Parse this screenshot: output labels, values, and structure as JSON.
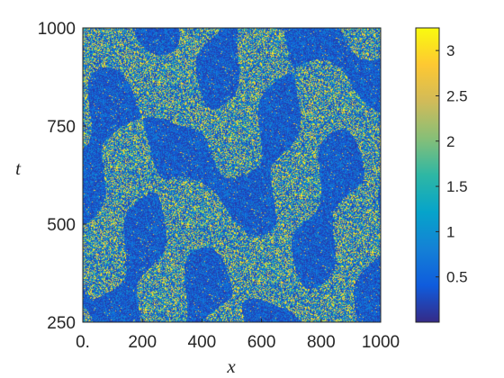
{
  "chart_data": {
    "type": "heatmap",
    "title": "",
    "xlabel": "x",
    "ylabel": "t",
    "xlim": [
      0,
      1000
    ],
    "ylim": [
      250,
      1000
    ],
    "x_ticks": [
      {
        "value": 0,
        "label": "0."
      },
      {
        "value": 200,
        "label": "200"
      },
      {
        "value": 400,
        "label": "400"
      },
      {
        "value": 600,
        "label": "600"
      },
      {
        "value": 800,
        "label": "800"
      },
      {
        "value": 1000,
        "label": "1000"
      }
    ],
    "y_ticks": [
      {
        "value": 250,
        "label": "250"
      },
      {
        "value": 500,
        "label": "500"
      },
      {
        "value": 750,
        "label": "750"
      },
      {
        "value": 1000,
        "label": "1000"
      }
    ],
    "colorbar": {
      "colormap": "parula",
      "range": [
        0,
        3.25
      ],
      "ticks": [
        {
          "value": 0.5,
          "label": "0.5"
        },
        {
          "value": 1,
          "label": "1"
        },
        {
          "value": 1.5,
          "label": "1.5"
        },
        {
          "value": 2,
          "label": "2"
        },
        {
          "value": 2.5,
          "label": "2.5"
        },
        {
          "value": 3,
          "label": "3"
        }
      ],
      "colors": [
        "#352a87",
        "#0f5cdd",
        "#1481d6",
        "#06a4ca",
        "#2eb7a4",
        "#87bf77",
        "#d1bb59",
        "#fec832",
        "#f9fb0e"
      ]
    },
    "field_description_colors": {
      "low": "#352a87",
      "mid": "#0f5cdd",
      "high": "#f9fb0e"
    }
  }
}
